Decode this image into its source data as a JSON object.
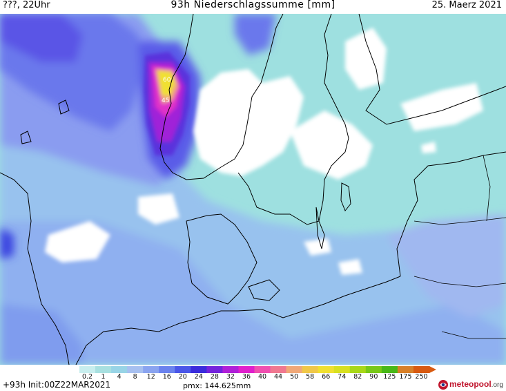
{
  "header": {
    "left": "???, 22Uhr",
    "center": "93h Niederschlagssumme [mm]",
    "right": "25. Maerz 2021"
  },
  "legend": {
    "labels": [
      "0.2",
      "1",
      "4",
      "8",
      "12",
      "16",
      "20",
      "24",
      "28",
      "32",
      "36",
      "40",
      "44",
      "50",
      "58",
      "66",
      "74",
      "82",
      "90",
      "125",
      "175",
      "250"
    ],
    "colors": [
      "#c8eeee",
      "#a8e0e0",
      "#98d4e6",
      "#a7c0f0",
      "#8aa4f0",
      "#6a82ee",
      "#4a56e8",
      "#3a2cdc",
      "#7424dc",
      "#b020d8",
      "#e020cc",
      "#f050b0",
      "#f07890",
      "#f0a878",
      "#f0c848",
      "#f0e030",
      "#d8e020",
      "#a8d818",
      "#78c818",
      "#48b818",
      "#d88028",
      "#d85a10"
    ]
  },
  "footer": {
    "init": "+93h Init:00Z22MAR2021",
    "pmx": "pmx: 144.625mm",
    "logo_main": "meteopool",
    "logo_suffix": ".org"
  },
  "colors": {
    "background": "#ffffff",
    "light_cyan": "#a8e0e0",
    "medium_blue": "#98b4f0",
    "deep_blue": "#5a6ee8"
  }
}
